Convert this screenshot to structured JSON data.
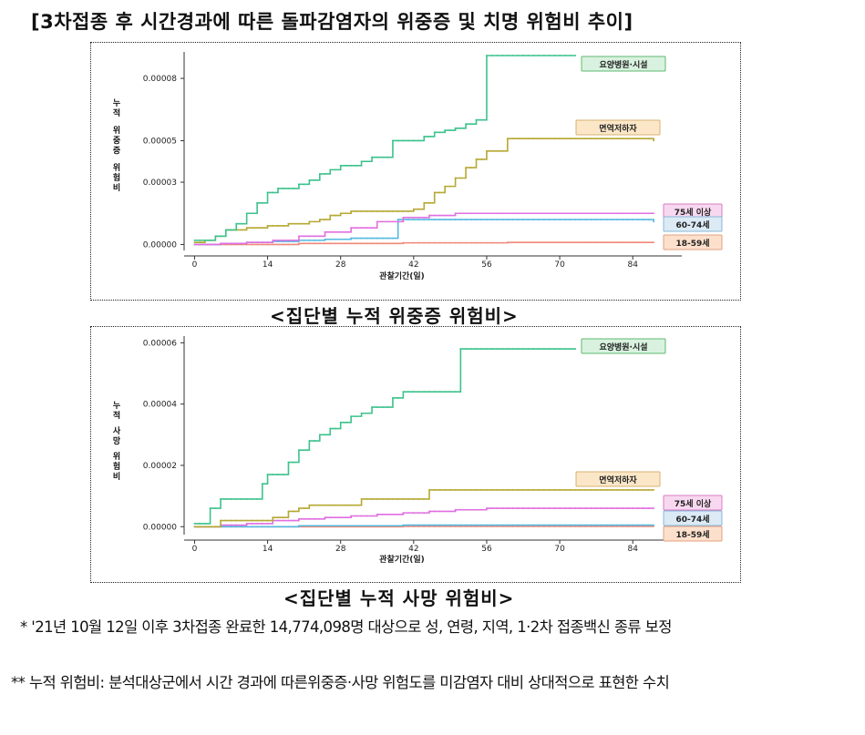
{
  "title": "[3차접종 후 시간경과에 따른 돌파감염자의 위중증 및 치명 위험비 추이]",
  "captions": {
    "severe": "<집단별 누적 위중증 위험비>",
    "death": "<집단별 누적 사망 위험비>"
  },
  "notes": {
    "note1": "* '21년 10월 12일 이후 3차접종 완료한 14,774,098명 대상으로 성, 연령, 지역, 1·2차 접종백신 종류 보정",
    "note2": "** 누적 위험비: 분석대상군에서 시간 경과에 따른위중증·사망 위험도를 미감염자 대비 상대적으로 표현한 수치"
  },
  "chart_data": [
    {
      "type": "line",
      "ylabel_lines": [
        "누적",
        "위중증",
        "위험비"
      ],
      "xlabel": "관찰기간(일)",
      "xticks": [
        0,
        14,
        28,
        42,
        56,
        70,
        84
      ],
      "yticks": [
        "0.00000",
        "0.00003",
        "0.00005",
        "0.00008"
      ],
      "ytick_values": [
        0.0,
        3e-05,
        5e-05,
        8e-05
      ],
      "xlim": [
        -2,
        92
      ],
      "ylim": [
        -2e-06,
        9.1e-05
      ],
      "grid": false,
      "legend": "right, labels at line ends",
      "series": [
        {
          "name": "요양병원·시설",
          "color": "#3cc28c",
          "label_bg": "#d9f2df",
          "label_border": "#5fb870",
          "x": [
            0,
            2,
            4,
            6,
            8,
            10,
            12,
            14,
            16,
            18,
            20,
            22,
            24,
            26,
            28,
            30,
            32,
            34,
            36,
            38,
            40,
            42,
            44,
            46,
            48,
            50,
            52,
            54,
            56,
            62,
            70,
            73
          ],
          "values": [
            2e-06,
            2e-06,
            4e-06,
            7e-06,
            1e-05,
            1.5e-05,
            2e-05,
            2.5e-05,
            2.7e-05,
            2.7e-05,
            2.9e-05,
            3.1e-05,
            3.4e-05,
            3.6e-05,
            3.8e-05,
            3.8e-05,
            4e-05,
            4.2e-05,
            4.2e-05,
            5e-05,
            5e-05,
            5e-05,
            5.2e-05,
            5.4e-05,
            5.5e-05,
            5.6e-05,
            5.8e-05,
            6e-05,
            9.1e-05,
            9.1e-05,
            9.1e-05,
            9.1e-05
          ]
        },
        {
          "name": "면역저하자",
          "color": "#b5a832",
          "label_bg": "#fbe7c8",
          "label_border": "#d8b070",
          "x": [
            0,
            2,
            4,
            6,
            8,
            10,
            12,
            14,
            16,
            18,
            20,
            22,
            24,
            26,
            28,
            30,
            32,
            34,
            36,
            38,
            40,
            42,
            44,
            46,
            48,
            50,
            52,
            54,
            56,
            60,
            70,
            80,
            88
          ],
          "values": [
            1e-06,
            2e-06,
            4e-06,
            7e-06,
            7e-06,
            8e-06,
            8e-06,
            9e-06,
            9e-06,
            1e-05,
            1e-05,
            1.1e-05,
            1.2e-05,
            1.4e-05,
            1.5e-05,
            1.6e-05,
            1.6e-05,
            1.6e-05,
            1.6e-05,
            1.6e-05,
            1.6e-05,
            1.7e-05,
            2e-05,
            2.5e-05,
            2.8e-05,
            3.2e-05,
            3.7e-05,
            4.1e-05,
            4.5e-05,
            5.1e-05,
            5.1e-05,
            5.1e-05,
            5e-05
          ]
        },
        {
          "name": "75세 이상",
          "color": "#e06fe0",
          "label_bg": "#f8d8f0",
          "label_border": "#d77cc4",
          "x": [
            0,
            5,
            10,
            15,
            20,
            25,
            30,
            35,
            40,
            45,
            50,
            56,
            70,
            88
          ],
          "values": [
            0.0,
            5e-07,
            1e-06,
            2e-06,
            4e-06,
            6e-06,
            8e-06,
            1.1e-05,
            1.3e-05,
            1.4e-05,
            1.5e-05,
            1.5e-05,
            1.5e-05,
            1.5e-05
          ]
        },
        {
          "name": "60-74세",
          "color": "#55b9e0",
          "label_bg": "#dbeaf5",
          "label_border": "#8ab8d8",
          "x": [
            0,
            5,
            10,
            15,
            20,
            25,
            30,
            35,
            38,
            39,
            45,
            56,
            70,
            88
          ],
          "values": [
            0.0,
            5e-07,
            1e-06,
            1.5e-06,
            2e-06,
            2.5e-06,
            3e-06,
            3e-06,
            3e-06,
            1.2e-05,
            1.2e-05,
            1.2e-05,
            1.2e-05,
            1.1e-05
          ]
        },
        {
          "name": "18-59세",
          "color": "#f08878",
          "label_bg": "#fde0cc",
          "label_border": "#e0a080",
          "x": [
            0,
            20,
            40,
            60,
            80,
            88
          ],
          "values": [
            0.0,
            5e-07,
            8e-07,
            1e-06,
            1e-06,
            1e-06
          ]
        }
      ]
    },
    {
      "type": "line",
      "ylabel_lines": [
        "누적",
        "사망",
        "위험비"
      ],
      "xlabel": "관찰기간(일)",
      "xticks": [
        0,
        14,
        28,
        42,
        56,
        70,
        84
      ],
      "yticks": [
        "0.00000",
        "0.00002",
        "0.00004",
        "0.00006"
      ],
      "ytick_values": [
        0.0,
        2e-05,
        4e-05,
        6e-05
      ],
      "xlim": [
        -2,
        92
      ],
      "ylim": [
        -2e-06,
        6.1e-05
      ],
      "grid": false,
      "legend": "right, labels at line ends",
      "series": [
        {
          "name": "요양병원·시설",
          "color": "#3cc28c",
          "label_bg": "#d9f2df",
          "label_border": "#5fb870",
          "x": [
            0,
            2,
            3,
            5,
            10,
            13,
            14,
            16,
            18,
            20,
            22,
            24,
            26,
            28,
            30,
            32,
            34,
            36,
            38,
            40,
            44,
            48,
            50,
            51,
            60,
            70,
            73
          ],
          "values": [
            1e-06,
            1e-06,
            6e-06,
            9e-06,
            9e-06,
            1.4e-05,
            1.7e-05,
            1.7e-05,
            2.1e-05,
            2.5e-05,
            2.8e-05,
            3e-05,
            3.2e-05,
            3.4e-05,
            3.6e-05,
            3.7e-05,
            3.9e-05,
            3.9e-05,
            4.2e-05,
            4.4e-05,
            4.4e-05,
            4.4e-05,
            4.4e-05,
            5.8e-05,
            5.8e-05,
            5.8e-05,
            5.8e-05
          ]
        },
        {
          "name": "면역저하자",
          "color": "#b5a832",
          "label_bg": "#fbe7c8",
          "label_border": "#d8b070",
          "x": [
            0,
            5,
            10,
            15,
            18,
            20,
            22,
            25,
            30,
            32,
            35,
            40,
            44,
            45,
            50,
            56,
            70,
            88
          ],
          "values": [
            0.0,
            2e-06,
            2e-06,
            3e-06,
            5e-06,
            6e-06,
            7e-06,
            7e-06,
            7e-06,
            9e-06,
            9e-06,
            9e-06,
            9e-06,
            1.2e-05,
            1.2e-05,
            1.2e-05,
            1.2e-05,
            1.2e-05
          ]
        },
        {
          "name": "75세 이상",
          "color": "#e06fe0",
          "label_bg": "#f8d8f0",
          "label_border": "#d77cc4",
          "x": [
            0,
            5,
            10,
            15,
            20,
            25,
            30,
            35,
            40,
            45,
            50,
            56,
            70,
            88
          ],
          "values": [
            0.0,
            5e-07,
            1e-06,
            2e-06,
            2.5e-06,
            3e-06,
            3.5e-06,
            4e-06,
            4.5e-06,
            5e-06,
            5.5e-06,
            6e-06,
            6e-06,
            6e-06
          ]
        },
        {
          "name": "60-74세",
          "color": "#55b9e0",
          "label_bg": "#dbeaf5",
          "label_border": "#8ab8d8",
          "x": [
            0,
            20,
            40,
            60,
            88
          ],
          "values": [
            0.0,
            3e-07,
            5e-07,
            5e-07,
            5e-07
          ]
        },
        {
          "name": "18-59세",
          "color": "#f08878",
          "label_bg": "#fde0cc",
          "label_border": "#e0a080",
          "x": [
            0,
            40,
            88
          ],
          "values": [
            0.0,
            1e-07,
            1e-07
          ]
        }
      ]
    }
  ]
}
